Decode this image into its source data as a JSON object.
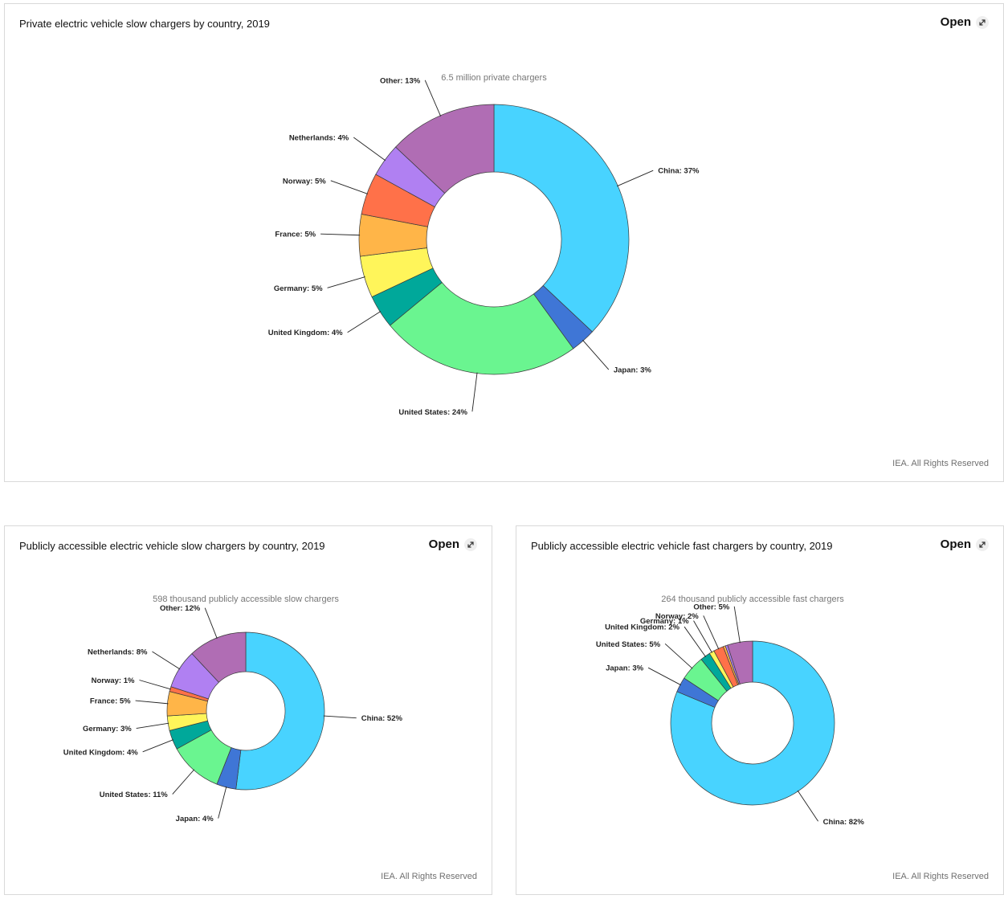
{
  "common": {
    "open_label": "Open",
    "open_icon": "expand-icon",
    "credit": "IEA. All Rights Reserved"
  },
  "chart_data": [
    {
      "type": "pie",
      "title": "Private electric vehicle slow chargers by country, 2019",
      "subtitle": "6.5 million private chargers",
      "categories": [
        "China",
        "Japan",
        "United States",
        "United Kingdom",
        "Germany",
        "France",
        "Norway",
        "Netherlands",
        "Other"
      ],
      "values": [
        37,
        3,
        24,
        4,
        5,
        5,
        5,
        4,
        13
      ],
      "labels": [
        "China: 37%",
        "Japan: 3%",
        "United States: 24%",
        "United Kingdom: 4%",
        "Germany: 5%",
        "France: 5%",
        "Norway: 5%",
        "Netherlands: 4%",
        "Other: 13%"
      ],
      "colors": [
        "#48d3ff",
        "#3f76d6",
        "#6af590",
        "#00a89a",
        "#fff55a",
        "#ffb548",
        "#ff7149",
        "#b080f2",
        "#b06db4"
      ],
      "unit": "%"
    },
    {
      "type": "pie",
      "title": "Publicly accessible electric vehicle slow chargers by country, 2019",
      "subtitle": "598 thousand publicly accessible slow chargers",
      "categories": [
        "China",
        "Japan",
        "United States",
        "United Kingdom",
        "Germany",
        "France",
        "Norway",
        "Netherlands",
        "Other"
      ],
      "values": [
        52,
        4,
        11,
        4,
        3,
        5,
        1,
        8,
        12
      ],
      "labels": [
        "China: 52%",
        "Japan: 4%",
        "United States: 11%",
        "United Kingdom: 4%",
        "Germany: 3%",
        "France: 5%",
        "Norway: 1%",
        "Netherlands: 8%",
        "Other: 12%"
      ],
      "colors": [
        "#48d3ff",
        "#3f76d6",
        "#6af590",
        "#00a89a",
        "#fff55a",
        "#ffb548",
        "#ff7149",
        "#b080f2",
        "#b06db4"
      ],
      "unit": "%"
    },
    {
      "type": "pie",
      "title": "Publicly accessible electric vehicle fast chargers by country, 2019",
      "subtitle": "264 thousand publicly accessible fast chargers",
      "categories": [
        "China",
        "Japan",
        "United States",
        "United Kingdom",
        "Germany",
        "Norway",
        "Other"
      ],
      "values": [
        82,
        3,
        5,
        2,
        1,
        2,
        5
      ],
      "labels": [
        "China: 82%",
        "Japan: 3%",
        "United States: 5%",
        "United Kingdom: 2%",
        "Germany: 1%",
        "Norway: 2%",
        "Other: 5%"
      ],
      "colors": [
        "#48d3ff",
        "#3f76d6",
        "#6af590",
        "#00a89a",
        "#fff55a",
        "#ff7149",
        "#b06db4"
      ],
      "extra_slivers": [
        "#ffb548",
        "#b080f2"
      ],
      "unit": "%"
    }
  ]
}
